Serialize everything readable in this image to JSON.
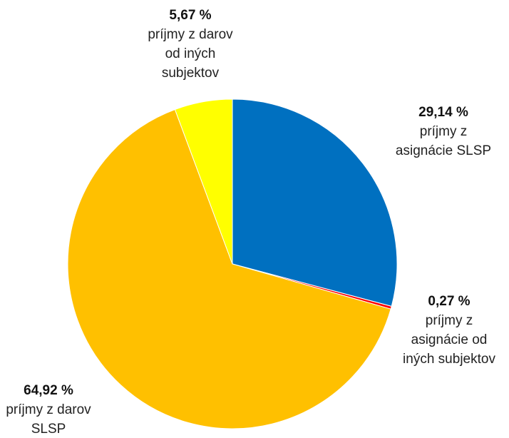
{
  "chart_data": {
    "type": "pie",
    "title": "",
    "start_angle_deg": 0,
    "direction": "clockwise",
    "legend": "none",
    "slices": [
      {
        "value": 29.14,
        "value_label": "29,14 %",
        "label_lines": [
          "príjmy z",
          "asignácie SLSP"
        ],
        "color": "#0070C0"
      },
      {
        "value": 0.27,
        "value_label": "0,27 %",
        "label_lines": [
          "príjmy z",
          "asignácie od",
          "iných subjektov"
        ],
        "color": "#FF0000"
      },
      {
        "value": 64.92,
        "value_label": "64,92 %",
        "label_lines": [
          "príjmy z darov",
          "SLSP"
        ],
        "color": "#FFC000"
      },
      {
        "value": 5.67,
        "value_label": "5,67 %",
        "label_lines": [
          "príjmy z darov",
          "od iných",
          "subjektov"
        ],
        "color": "#FFFF00"
      }
    ]
  }
}
